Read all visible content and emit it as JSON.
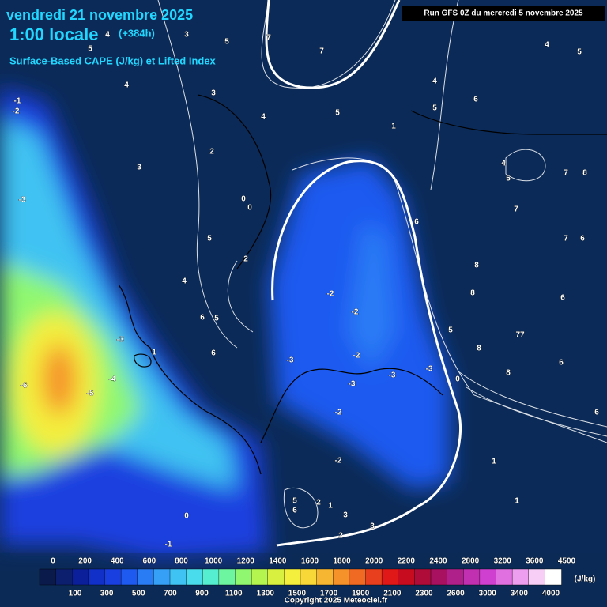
{
  "header": {
    "date": "vendredi 21 novembre 2025",
    "time": "1:00 locale",
    "lead": "(+384h)",
    "product": "Surface-Based CAPE (J/kg) et Lifted Index"
  },
  "run_info": "Run GFS 0Z du mercredi 5 novembre 2025",
  "map": {
    "labels": [
      "-1",
      "-2",
      "-3",
      "-6",
      "-5",
      "-4",
      "4",
      "3",
      "5",
      "7",
      "7",
      "3",
      "4",
      "5",
      "1",
      "2",
      "3",
      "0",
      "0",
      "5",
      "2",
      "4",
      "6",
      "5",
      "6",
      "-2",
      "-2",
      "-2",
      "-3",
      "-3",
      "-3",
      "-3",
      "0",
      "-2",
      "-2",
      "5",
      "6",
      "2",
      "1",
      "3",
      "3",
      "2",
      "0",
      "-1",
      "4",
      "5",
      "6",
      "4",
      "5",
      "7",
      "7",
      "8",
      "6",
      "8",
      "8",
      "6",
      "7",
      "6",
      "5",
      "8",
      "77",
      "8",
      "6",
      "6",
      "1",
      "1",
      "4",
      "5",
      "1",
      "-3",
      "4",
      "5"
    ]
  },
  "colorbar": {
    "unit": "(J/kg)",
    "top_labels": [
      0,
      200,
      400,
      600,
      800,
      1000,
      1200,
      1400,
      1600,
      1800,
      2000,
      2200,
      2400,
      2800,
      3200,
      3600,
      4500
    ],
    "bottom_labels": [
      100,
      300,
      500,
      700,
      900,
      1100,
      1300,
      1500,
      1700,
      1900,
      2100,
      2300,
      2600,
      3000,
      3400,
      4000
    ],
    "colors": [
      "#0a1a4a",
      "#0c1f6e",
      "#0b1f9a",
      "#1030c8",
      "#1a3fe0",
      "#1e5af0",
      "#2a7cf5",
      "#35a0f5",
      "#3fc3f2",
      "#48dcec",
      "#55eed0",
      "#6ef5a0",
      "#8ff870",
      "#b4f550",
      "#d8f040",
      "#f4ee3c",
      "#f8d838",
      "#f7b631",
      "#f5922a",
      "#f06a24",
      "#e8401e",
      "#e01818",
      "#c80c20",
      "#b00c3a",
      "#a81060",
      "#b0208a",
      "#c030b0",
      "#d040d0",
      "#e070e0",
      "#ee9eee",
      "#f6cef6",
      "#ffffff"
    ]
  },
  "copyright": "Copyright 2025 Meteociel.fr"
}
